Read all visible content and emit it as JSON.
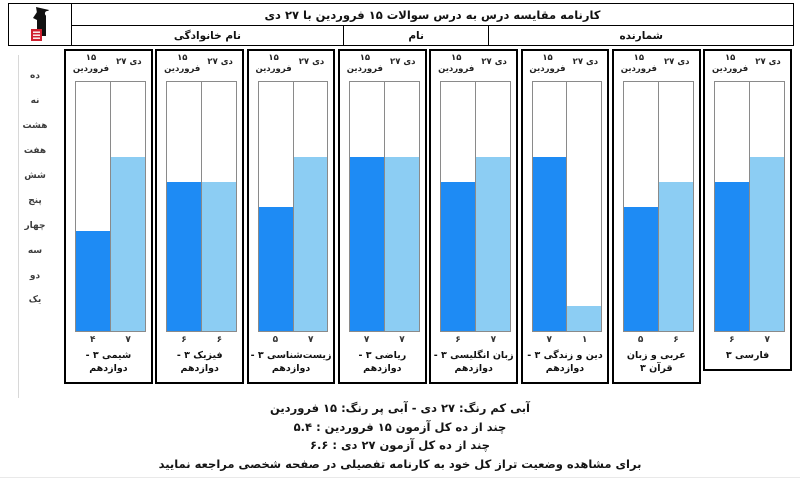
{
  "header": {
    "title": "کارنامه مقایسه درس به درس سوالات ۱۵ فروردین با ۲۷ دی",
    "last_name_label": "نام خانوادگی",
    "first_name_label": "نام",
    "counter_label": "شمارنده"
  },
  "axis": {
    "labels": [
      "ده",
      "نه",
      "هشت",
      "هفت",
      "شش",
      "پنج",
      "چهار",
      "سه",
      "دو",
      "یک"
    ]
  },
  "chart_data": {
    "type": "bar",
    "title": "کارنامه مقایسه درس به درس سوالات ۱۵ فروردین با ۲۷ دی",
    "categories": [
      "فارسی ۳",
      "عربی و زبان قرآن ۳",
      "دین و زندگی ۳ - دوازدهم",
      "زبان انگلیسی ۳ - دوازدهم",
      "ریاضی ۳ - دوازدهم",
      "زیست‌شناسی ۳ - دوازدهم",
      "فیزیک ۳ - دوازدهم",
      "شیمی ۳ - دوازدهم"
    ],
    "categories_direction": "rtl-first-category-rightmost",
    "series": [
      {
        "name": "۱۵ فروردین",
        "header_label": "۱۵ فروردین",
        "color": "#1e8bf4",
        "values": [
          6,
          5,
          7,
          6,
          7,
          5,
          6,
          4
        ],
        "values_fa": [
          "۶",
          "۵",
          "۷",
          "۶",
          "۷",
          "۵",
          "۶",
          "۴"
        ]
      },
      {
        "name": "۲۷ دی",
        "header_label": "دی ۲۷",
        "color": "#8ccdf3",
        "values": [
          7,
          6,
          1,
          7,
          7,
          7,
          6,
          7
        ],
        "values_fa": [
          "۷",
          "۶",
          "۱",
          "۷",
          "۷",
          "۷",
          "۶",
          "۷"
        ]
      }
    ],
    "ylim": [
      0,
      10
    ],
    "y_tick_labels": [
      "یک",
      "دو",
      "سه",
      "چهار",
      "پنج",
      "شش",
      "هفت",
      "هشت",
      "نه",
      "ده"
    ],
    "grid": false,
    "legend_position": "bottom-text"
  },
  "footer": {
    "legend_line": "آبی کم رنگ: ۲۷ دی - آبی پر رنگ: ۱۵ فروردین",
    "avg_15_line": "چند از ده کل آزمون ۱۵ فروردین : ۵.۴",
    "avg_27_line": "چند از ده کل آزمون ۲۷ دی : ۶.۶",
    "note_line": "برای مشاهده وضعیت تراز کل خود به کارنامه تفصیلی در صفحه شخصی مراجعه نمایید"
  }
}
